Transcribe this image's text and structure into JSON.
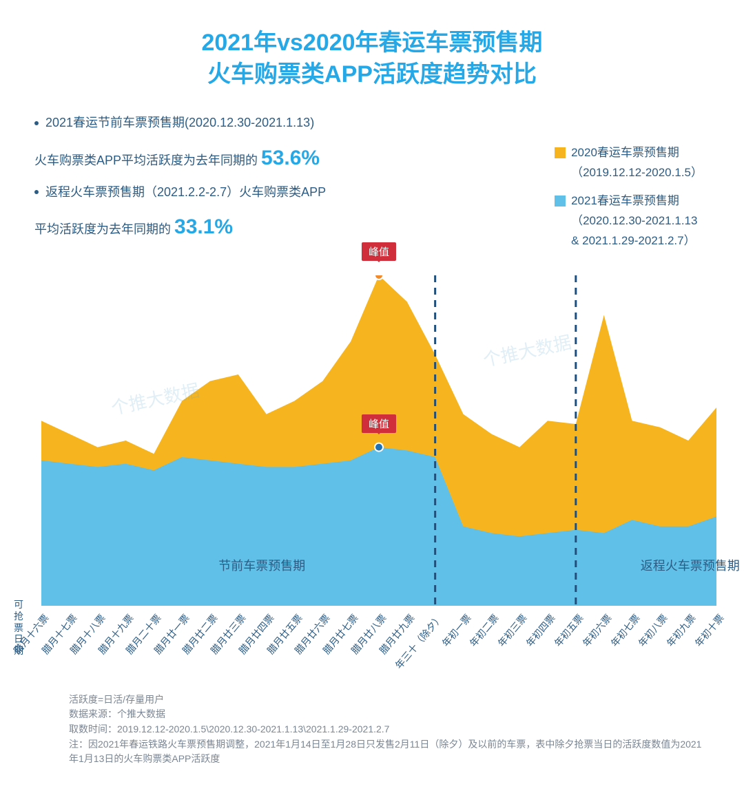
{
  "colors": {
    "title": "#26a7e6",
    "body": "#2c5c84",
    "accent": "#26a7e6",
    "series2020": "#f6b41e",
    "series2021": "#61c0e8",
    "badge": "#cf2e3a",
    "peakDot2020": "#f08a2c",
    "peakDot2021": "#1e73b6",
    "grid": "#d7dde3",
    "axis": "#9aa6b2",
    "dash": "#1e4e79",
    "note": "#7a8694",
    "watermark": "#5aa7cf"
  },
  "title_l1": "2021年vs2020年春运车票预售期",
  "title_l2": "火车购票类APP活跃度趋势对比",
  "bullet1": "2021春运节前车票预售期(2020.12.30-2021.1.13)",
  "bullet1_line2_a": "火车购票类APP平均活跃度为去年同期的",
  "stat1": "53.6%",
  "bullet2": "返程火车票预售期（2021.2.2-2.7）火车购票类APP",
  "bullet2_line2_a": "平均活跃度为去年同期的",
  "stat2": "33.1%",
  "legend": {
    "s2020_l1": "2020春运车票预售期",
    "s2020_l2": "（2019.12.12-2020.1.5）",
    "s2021_l1": "2021春运车票预售期",
    "s2021_l2": "（2020.12.30-2021.1.13",
    "s2021_l3": "& 2021.1.29-2021.2.7）"
  },
  "chart": {
    "type": "area",
    "ymax": 100,
    "categories": [
      "腊月十六票",
      "腊月十七票",
      "腊月十八票",
      "腊月十九票",
      "腊月二十票",
      "腊月廿一票",
      "腊月廿二票",
      "腊月廿三票",
      "腊月廿四票",
      "腊月廿五票",
      "腊月廿六票",
      "腊月廿七票",
      "腊月廿八票",
      "腊月廿九票",
      "年三十（除夕）",
      "年初一票",
      "年初二票",
      "年初三票",
      "年初四票",
      "年初五票",
      "年初六票",
      "年初七票",
      "年初八票",
      "年初九票",
      "年初十票"
    ],
    "series2020": [
      56,
      52,
      48,
      50,
      46,
      62,
      68,
      70,
      58,
      62,
      68,
      80,
      100,
      92,
      76,
      58,
      52,
      48,
      56,
      55,
      88,
      56,
      54,
      50,
      60
    ],
    "series2021": [
      44,
      43,
      42,
      43,
      41,
      45,
      44,
      43,
      42,
      42,
      43,
      44,
      48,
      47,
      45,
      24,
      22,
      21,
      22,
      23,
      22,
      26,
      24,
      24,
      27
    ],
    "peak2020_index": 12,
    "peak2021_index": 12,
    "dash_index_a": 14,
    "dash_index_b": 19,
    "region1_label": "节前车票预售期",
    "region2_label": "返程火车票预售期",
    "peak_label": "峰值",
    "y_axis_label_l1": "可",
    "y_axis_label_l2": "抢",
    "y_axis_label_l3": "票",
    "y_axis_label_l4": "日",
    "y_axis_label_l5": "期"
  },
  "watermark": "个推大数据",
  "notes": {
    "l1": "活跃度=日活/存量用户",
    "l2": "数据来源：个推大数据",
    "l3": "取数时间：2019.12.12-2020.1.5\\2020.12.30-2021.1.13\\2021.1.29-2021.2.7",
    "l4": "注：因2021年春运铁路火车票预售期调整，2021年1月14日至1月28日只发售2月11日（除夕）及以前的车票，表中除夕抢票当日的活跃度数值为2021年1月13日的火车购票类APP活跃度"
  }
}
